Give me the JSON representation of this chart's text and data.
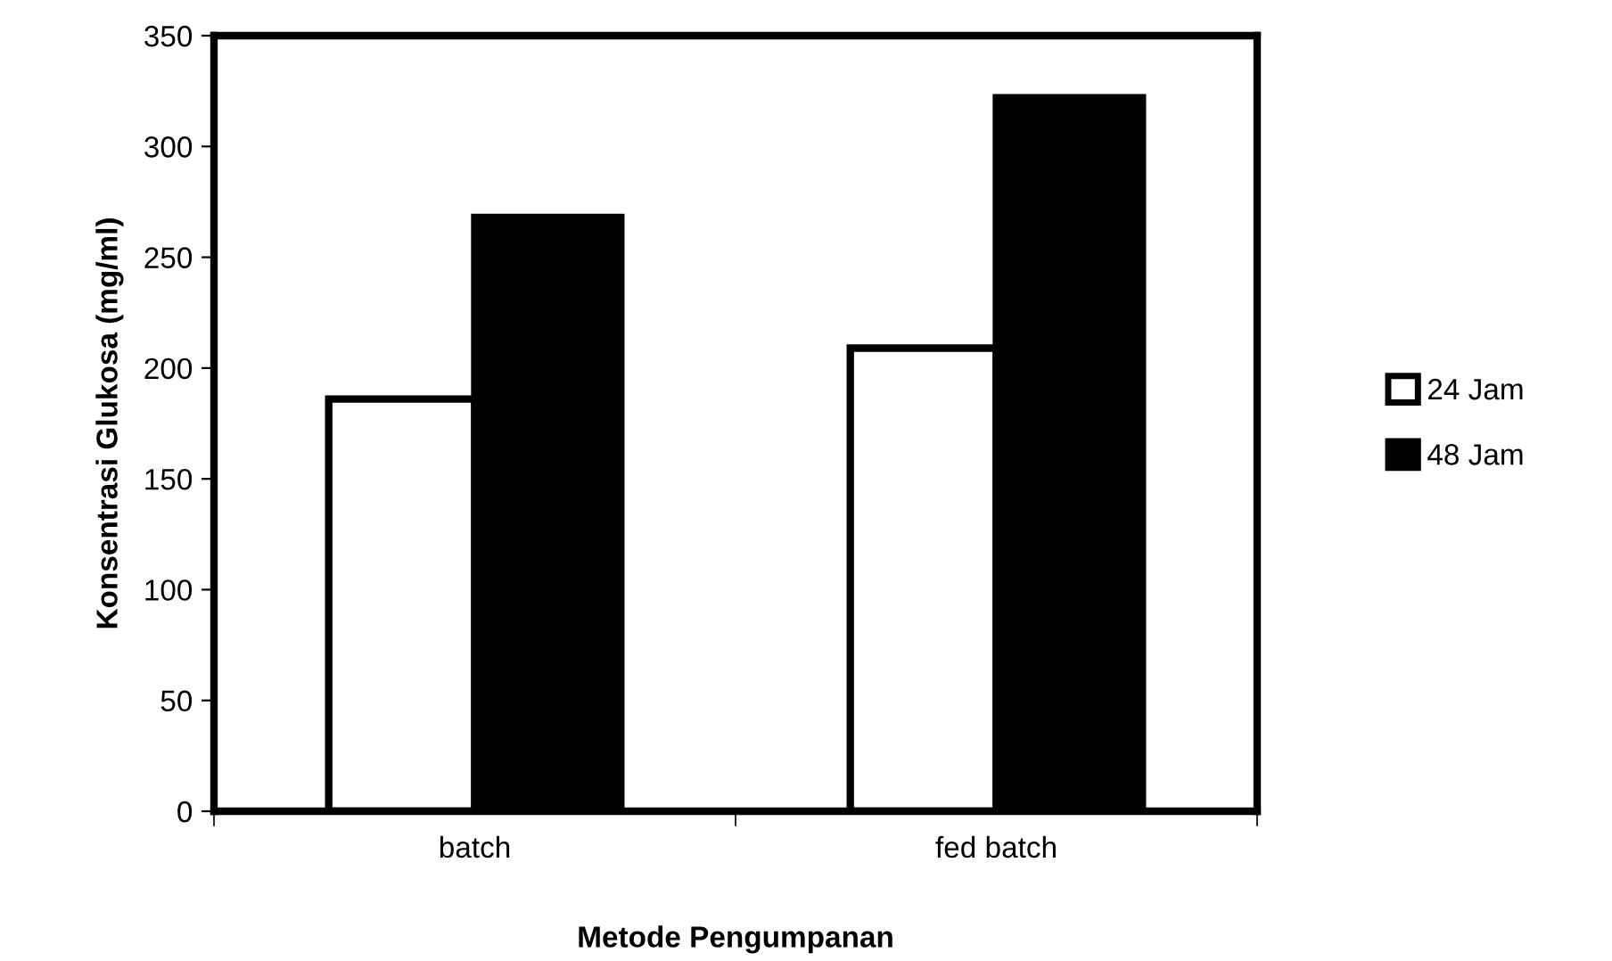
{
  "chart_data": {
    "type": "bar",
    "xlabel": "Metode Pengumpanan",
    "ylabel": "Konsentrasi Glukosa (mg/ml)",
    "categories": [
      "batch",
      "fed batch"
    ],
    "series": [
      {
        "name": "24 Jam",
        "color": "#ffffff",
        "values": [
          186,
          209
        ]
      },
      {
        "name": "48 Jam",
        "color": "#000000",
        "values": [
          268,
          322
        ]
      }
    ],
    "ylim": [
      0,
      350
    ],
    "yticks": [
      0,
      50,
      100,
      150,
      200,
      250,
      300,
      350
    ],
    "grid": false,
    "legend": "right"
  }
}
